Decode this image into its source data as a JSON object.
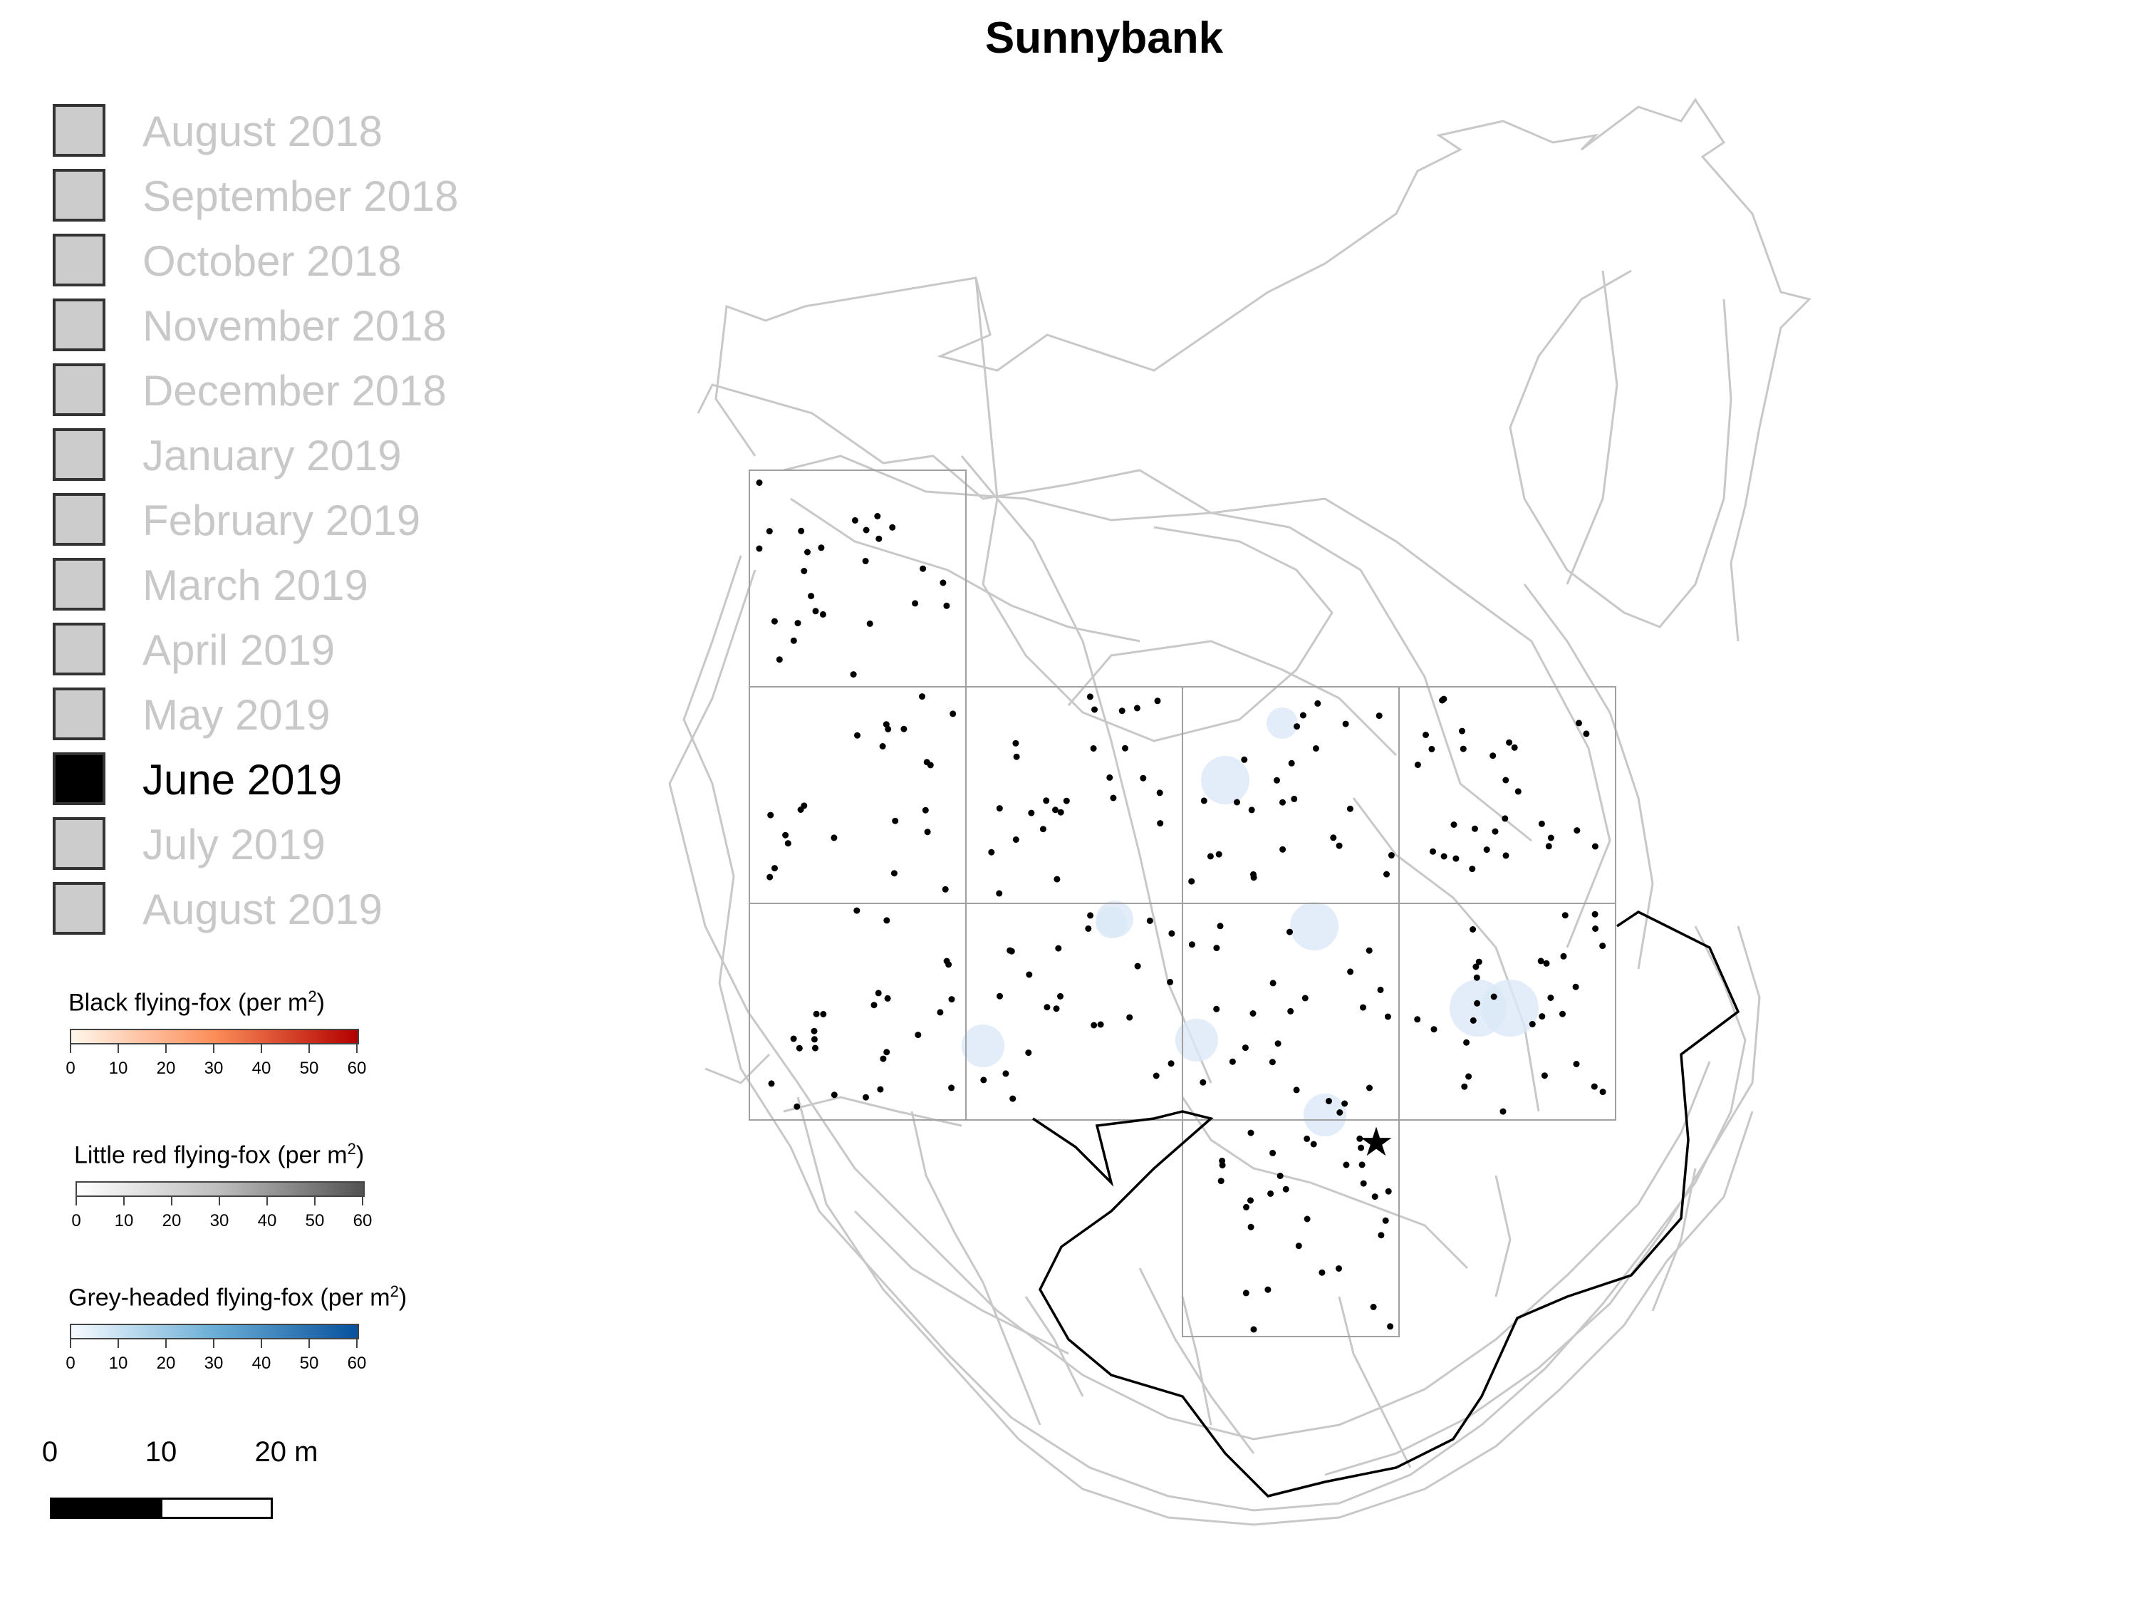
{
  "title": "Sunnybank",
  "months": [
    {
      "label": "August 2018",
      "active": false
    },
    {
      "label": "September 2018",
      "active": false
    },
    {
      "label": "October 2018",
      "active": false
    },
    {
      "label": "November 2018",
      "active": false
    },
    {
      "label": "December 2018",
      "active": false
    },
    {
      "label": "January 2019",
      "active": false
    },
    {
      "label": "February 2019",
      "active": false
    },
    {
      "label": "March 2019",
      "active": false
    },
    {
      "label": "April 2019",
      "active": false
    },
    {
      "label": "May 2019",
      "active": false
    },
    {
      "label": "June 2019",
      "active": true
    },
    {
      "label": "July 2019",
      "active": false
    },
    {
      "label": "August 2019",
      "active": false
    }
  ],
  "colorbars": [
    {
      "title": "Black flying-fox (per m",
      "title_sup": "2",
      "title_end": ")",
      "ticks": [
        "0",
        "10",
        "20",
        "30",
        "40",
        "50",
        "60"
      ],
      "from": "#fff7ec",
      "mid": "#fc8d59",
      "to": "#b30000"
    },
    {
      "title": "Little red flying-fox (per m",
      "title_sup": "2",
      "title_end": ")",
      "ticks": [
        "0",
        "10",
        "20",
        "30",
        "40",
        "50",
        "60"
      ],
      "from": "#ffffff",
      "mid": "#bdbdbd",
      "to": "#525252"
    },
    {
      "title": "Grey-headed flying-fox (per m",
      "title_sup": "2",
      "title_end": ")",
      "ticks": [
        "0",
        "10",
        "20",
        "30",
        "40",
        "50",
        "60"
      ],
      "from": "#f7fbff",
      "mid": "#6baed6",
      "to": "#08519c"
    }
  ],
  "scalebar": {
    "labels": [
      "0",
      "10",
      "20 m"
    ]
  },
  "colors": {
    "track": "#c8c8c8",
    "grid": "#a0a0a0",
    "boundary": "#000000",
    "point": "#000000",
    "density": "#dbe8f7"
  },
  "icons": {
    "roost_marker": "star-icon"
  }
}
